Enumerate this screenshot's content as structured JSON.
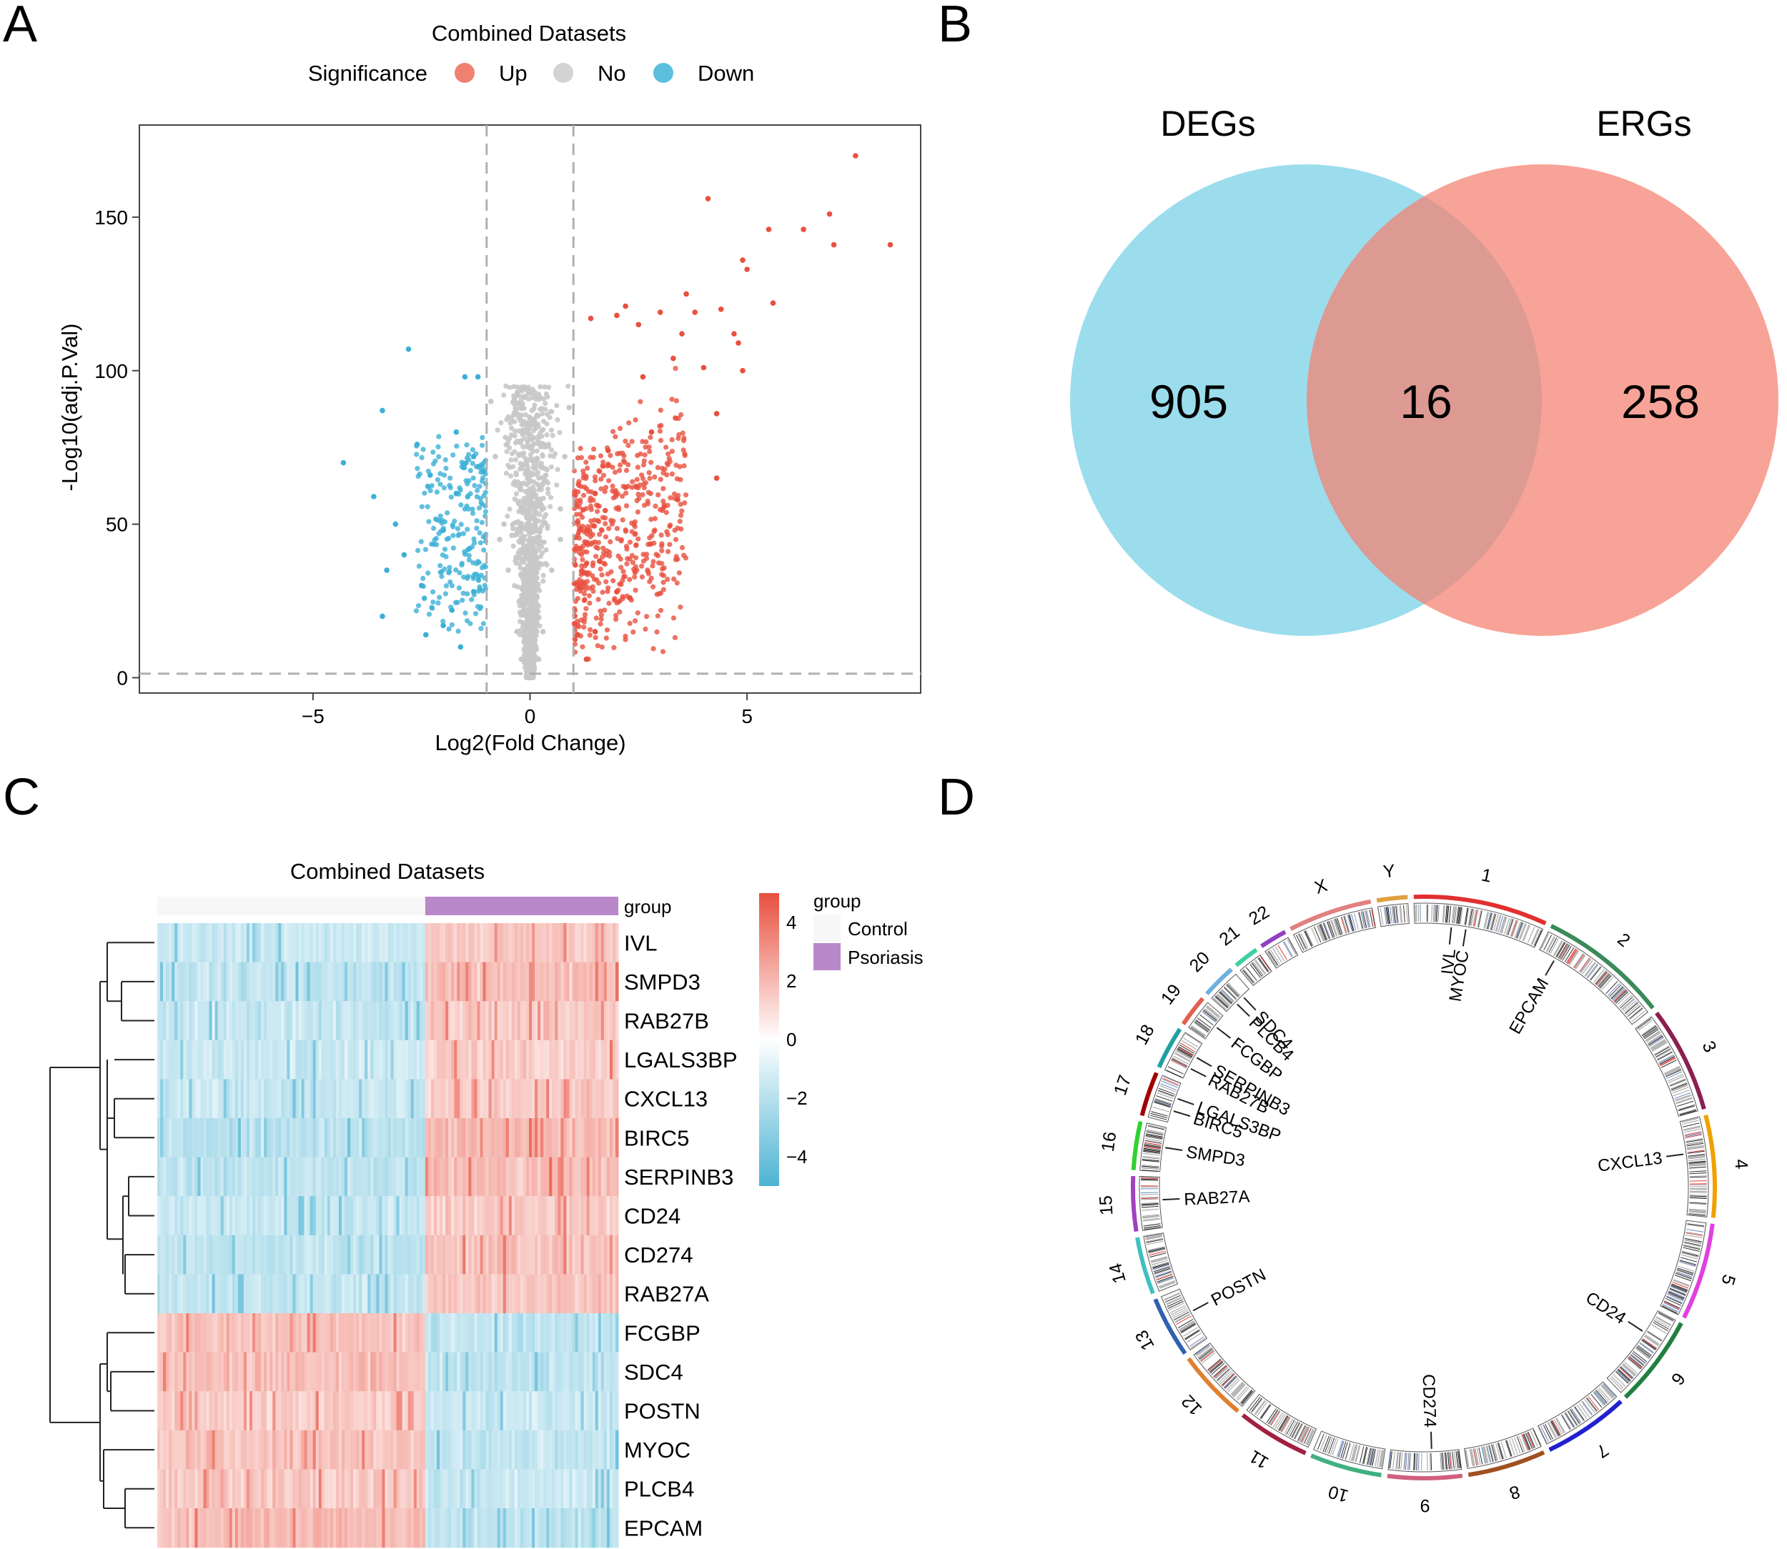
{
  "panels": {
    "a": {
      "letter": "A"
    },
    "b": {
      "letter": "B"
    },
    "c": {
      "letter": "C"
    },
    "d": {
      "letter": "D"
    }
  },
  "chart_data": [
    {
      "type": "scatter",
      "title": "Combined Datasets",
      "xlabel": "Log2(Fold Change)",
      "ylabel": "-Log10(adj.P.Val)",
      "xlim": [
        -9,
        9
      ],
      "ylim": [
        -5,
        180
      ],
      "x_ticks": [
        -5,
        0,
        5
      ],
      "y_ticks": [
        0,
        50,
        100,
        150
      ],
      "x_tick_labels": [
        "−5",
        "0",
        "5"
      ],
      "y_tick_labels": [
        "0",
        "50",
        "100",
        "150"
      ],
      "grid": false,
      "thresholds": {
        "logfc": [
          -1,
          1
        ],
        "neglog10p": 1.3
      },
      "legend": {
        "position": "top",
        "title": "Significance",
        "entries": [
          {
            "label": "Up",
            "color": "#f08070"
          },
          {
            "label": "No",
            "color": "#d3d3d3"
          },
          {
            "label": "Down",
            "color": "#5bc0de"
          }
        ]
      },
      "series": [
        {
          "name": "Up",
          "color": "#e8503f",
          "points": [
            [
              7.5,
              170
            ],
            [
              8.3,
              141
            ],
            [
              6.9,
              151
            ],
            [
              6.3,
              146
            ],
            [
              7.0,
              141
            ],
            [
              5.5,
              146
            ],
            [
              4.1,
              156
            ],
            [
              4.9,
              136
            ],
            [
              5.0,
              133
            ],
            [
              5.6,
              122
            ],
            [
              3.6,
              125
            ],
            [
              4.7,
              112
            ],
            [
              4.8,
              109
            ],
            [
              4.4,
              120
            ],
            [
              3.8,
              119
            ],
            [
              3.5,
              112
            ],
            [
              4.9,
              100
            ],
            [
              4.3,
              86
            ],
            [
              3.3,
              104
            ],
            [
              4.0,
              101
            ],
            [
              2.2,
              121
            ],
            [
              2.0,
              118
            ],
            [
              2.5,
              115
            ],
            [
              1.4,
              117
            ],
            [
              3.0,
              119
            ],
            [
              4.3,
              65
            ],
            [
              3.4,
              58
            ],
            [
              2.8,
              80
            ],
            [
              2.6,
              98
            ],
            [
              2.0,
              28
            ],
            [
              1.3,
              6
            ],
            [
              1.5,
              15
            ],
            [
              1.6,
              38
            ],
            [
              1.1,
              14
            ],
            [
              2.3,
              26
            ],
            [
              1.5,
              60
            ],
            [
              1.8,
              74
            ],
            [
              2.2,
              62
            ]
          ]
        },
        {
          "name": "No",
          "color": "#c8c8c8",
          "points": [
            [
              -0.9,
              90
            ],
            [
              -0.8,
              72
            ],
            [
              -0.6,
              50
            ],
            [
              -0.5,
              35
            ],
            [
              -0.3,
              15
            ],
            [
              0.0,
              4
            ],
            [
              0.3,
              15
            ],
            [
              0.5,
              35
            ],
            [
              0.7,
              55
            ],
            [
              0.8,
              72
            ],
            [
              0.9,
              88
            ],
            [
              0.7,
              45
            ],
            [
              -0.7,
              45
            ],
            [
              0.2,
              6
            ],
            [
              -0.2,
              6
            ]
          ]
        },
        {
          "name": "Down",
          "color": "#3cb0d6",
          "points": [
            [
              -2.8,
              107
            ],
            [
              -1.5,
              98
            ],
            [
              -1.2,
              98
            ],
            [
              -3.4,
              87
            ],
            [
              -2.6,
              76
            ],
            [
              -4.3,
              70
            ],
            [
              -1.7,
              80
            ],
            [
              -1.3,
              72
            ],
            [
              -2.3,
              66
            ],
            [
              -3.6,
              59
            ],
            [
              -3.1,
              50
            ],
            [
              -2.9,
              40
            ],
            [
              -1.7,
              60
            ],
            [
              -2.0,
              48
            ],
            [
              -1.4,
              42
            ],
            [
              -2.5,
              30
            ],
            [
              -3.3,
              35
            ],
            [
              -3.4,
              20
            ],
            [
              -2.4,
              14
            ],
            [
              -1.8,
              22
            ],
            [
              -1.3,
              28
            ],
            [
              -1.6,
              10
            ],
            [
              -2.0,
              17
            ]
          ]
        }
      ]
    },
    {
      "type": "venn",
      "sets": [
        {
          "name": "DEGs",
          "color": "#7fd3e8"
        },
        {
          "name": "ERGs",
          "color": "#f57f6f"
        }
      ],
      "regions": [
        {
          "sets": [
            "DEGs"
          ],
          "value": 905,
          "label": "905"
        },
        {
          "sets": [
            "DEGs",
            "ERGs"
          ],
          "value": 16,
          "label": "16"
        },
        {
          "sets": [
            "ERGs"
          ],
          "value": 258,
          "label": "258"
        }
      ]
    },
    {
      "type": "heatmap",
      "title": "Combined Datasets",
      "rows": [
        "IVL",
        "SMPD3",
        "RAB27B",
        "LGALS3BP",
        "CXCL13",
        "BIRC5",
        "SERPINB3",
        "CD24",
        "CD274",
        "RAB27A",
        "FCGBP",
        "SDC4",
        "POSTN",
        "MYOC",
        "PLCB4",
        "EPCAM"
      ],
      "row_direction": [
        1,
        1,
        1,
        1,
        1,
        1,
        1,
        1,
        1,
        1,
        -1,
        -1,
        -1,
        -1,
        -1,
        -1
      ],
      "groups": [
        {
          "name": "Control",
          "color": "#f7f7f7",
          "fraction": 0.58
        },
        {
          "name": "Psoriasis",
          "color": "#b888c8",
          "fraction": 0.42
        }
      ],
      "annotation_label": "group",
      "legend_title": "group",
      "colorbar": {
        "min": -5,
        "max": 5,
        "ticks": [
          4,
          2,
          0,
          -2,
          -4
        ],
        "tick_labels": [
          "4",
          "2",
          "0",
          "−2",
          "−4"
        ],
        "low": "#4cb3d3",
        "mid": "#ffffff",
        "high": "#e8503f"
      }
    },
    {
      "type": "circos",
      "chromosomes": [
        {
          "name": "1",
          "color": "#e03030"
        },
        {
          "name": "2",
          "color": "#3a8a5a"
        },
        {
          "name": "3",
          "color": "#8b2050"
        },
        {
          "name": "4",
          "color": "#f0a000"
        },
        {
          "name": "5",
          "color": "#e040e0"
        },
        {
          "name": "6",
          "color": "#208040"
        },
        {
          "name": "7",
          "color": "#2020d0"
        },
        {
          "name": "8",
          "color": "#a05020"
        },
        {
          "name": "9",
          "color": "#d06080"
        },
        {
          "name": "10",
          "color": "#40b080"
        },
        {
          "name": "11",
          "color": "#a02040"
        },
        {
          "name": "12",
          "color": "#e08030"
        },
        {
          "name": "13",
          "color": "#3060b0"
        },
        {
          "name": "14",
          "color": "#40c0c0"
        },
        {
          "name": "15",
          "color": "#a040c0"
        },
        {
          "name": "16",
          "color": "#30d030"
        },
        {
          "name": "17",
          "color": "#a00000"
        },
        {
          "name": "18",
          "color": "#20a0a0"
        },
        {
          "name": "19",
          "color": "#e06050"
        },
        {
          "name": "20",
          "color": "#70b0e0"
        },
        {
          "name": "21",
          "color": "#40d0a0"
        },
        {
          "name": "22",
          "color": "#9040c0"
        },
        {
          "name": "X",
          "color": "#e08080"
        },
        {
          "name": "Y",
          "color": "#e0a040"
        }
      ],
      "genes": [
        {
          "name": "IVL",
          "chr": "1"
        },
        {
          "name": "MYOC",
          "chr": "1"
        },
        {
          "name": "EPCAM",
          "chr": "2"
        },
        {
          "name": "CXCL13",
          "chr": "4"
        },
        {
          "name": "CD24",
          "chr": "6"
        },
        {
          "name": "CD274",
          "chr": "9"
        },
        {
          "name": "POSTN",
          "chr": "13"
        },
        {
          "name": "RAB27A",
          "chr": "15"
        },
        {
          "name": "SMPD3",
          "chr": "16"
        },
        {
          "name": "BIRC5",
          "chr": "17"
        },
        {
          "name": "LGALS3BP",
          "chr": "17"
        },
        {
          "name": "RAB27B",
          "chr": "18"
        },
        {
          "name": "SERPINB3",
          "chr": "18"
        },
        {
          "name": "FCGBP",
          "chr": "19"
        },
        {
          "name": "PLCB4",
          "chr": "20"
        },
        {
          "name": "SDC4",
          "chr": "20"
        }
      ]
    }
  ]
}
